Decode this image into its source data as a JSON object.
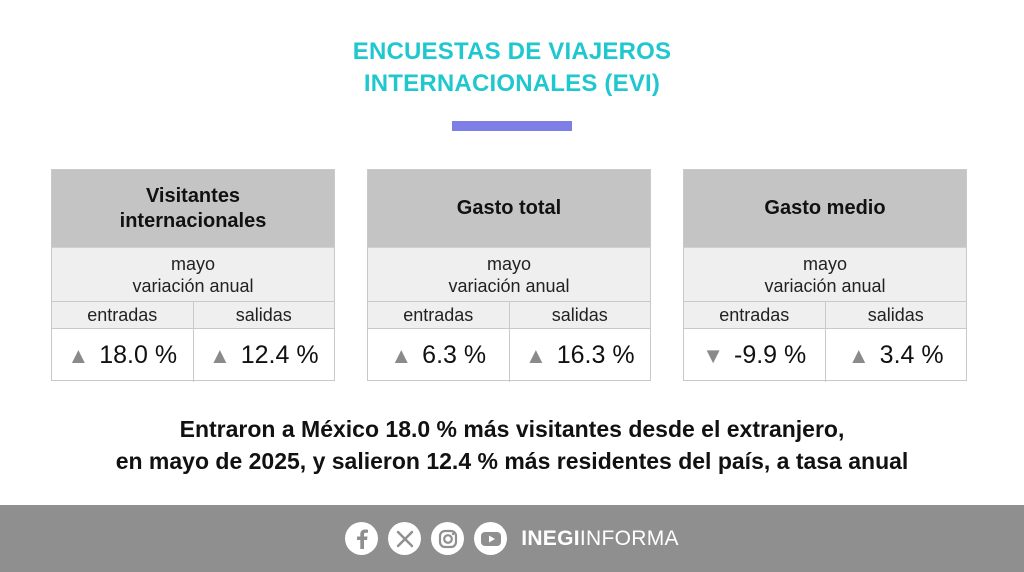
{
  "header": {
    "title_line1": "ENCUESTAS DE VIAJEROS",
    "title_line2": "INTERNACIONALES (EVI)",
    "accent_color": "#1fc7cf",
    "bar_color": "#7d7ee6"
  },
  "cards": [
    {
      "title_line1": "Visitantes",
      "title_line2": "internacionales",
      "period": "mayo",
      "measure": "variación anual",
      "col1": "entradas",
      "col2": "salidas",
      "val1": "18.0 %",
      "val1_arrow": "▲",
      "val2": "12.4 %",
      "val2_arrow": "▲"
    },
    {
      "title_line1": "Gasto total",
      "title_line2": "",
      "period": "mayo",
      "measure": "variación anual",
      "col1": "entradas",
      "col2": "salidas",
      "val1": "6.3 %",
      "val1_arrow": "▲",
      "val2": "16.3 %",
      "val2_arrow": "▲"
    },
    {
      "title_line1": "Gasto medio",
      "title_line2": "",
      "period": "mayo",
      "measure": "variación anual",
      "col1": "entradas",
      "col2": "salidas",
      "val1": "-9.9 %",
      "val1_arrow": "▼",
      "val2": "3.4 %",
      "val2_arrow": "▲"
    }
  ],
  "headline": {
    "line1": "Entraron a México 18.0 % más visitantes desde el extranjero,",
    "line2": "en mayo de 2025, y salieron 12.4 % más residentes del país, a tasa anual"
  },
  "footer": {
    "icons": [
      "facebook-icon",
      "x-icon",
      "instagram-icon",
      "youtube-icon"
    ],
    "brand_bold": "INEGI",
    "brand_light": "INFORMA"
  }
}
